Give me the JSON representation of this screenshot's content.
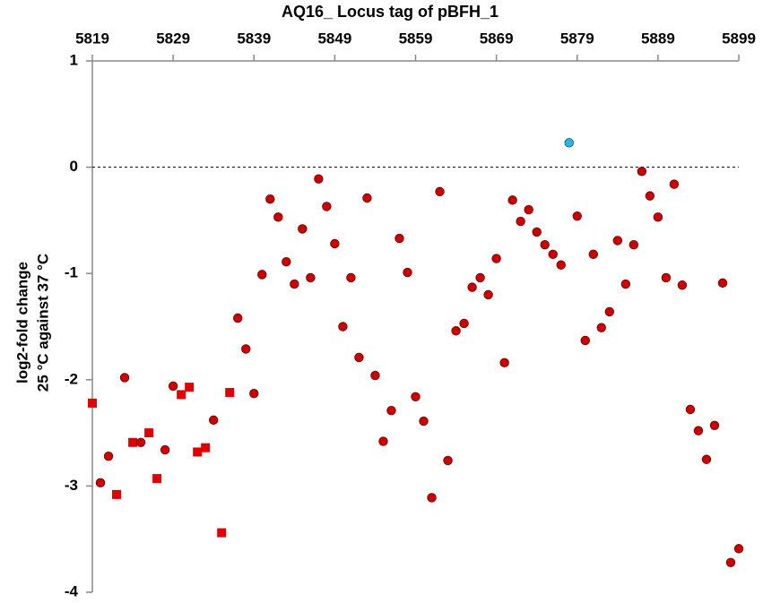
{
  "chart_data": {
    "type": "scatter",
    "title": "AQ16_ Locus tag of pBFH_1",
    "y_label": [
      "log2-fold change",
      "25 °C against 37 °C"
    ],
    "xlim": [
      5819,
      5899
    ],
    "xticks": [
      5819,
      5829,
      5839,
      5849,
      5859,
      5869,
      5879,
      5889,
      5899
    ],
    "ylim": [
      -4,
      1
    ],
    "yticks": [
      -4,
      -3,
      -2,
      -1,
      0,
      1
    ],
    "reference_line": 0,
    "series": [
      {
        "color": "#e00000",
        "marker": "square",
        "x": [
          5819,
          5822,
          5824,
          5826,
          5827,
          5830,
          5831,
          5832,
          5833,
          5835,
          5836
        ],
        "values": [
          -2.22,
          -3.08,
          -2.59,
          -2.5,
          -2.93,
          -2.14,
          -2.07,
          -2.68,
          -2.64,
          -3.44,
          -2.12
        ]
      },
      {
        "color": "#cc0000",
        "marker": "circle",
        "x": [
          5820,
          5821,
          5823,
          5825,
          5828,
          5829,
          5834,
          5837,
          5838,
          5839,
          5840,
          5841,
          5842,
          5843,
          5844,
          5845,
          5846,
          5847,
          5848,
          5849,
          5850,
          5851,
          5852,
          5853,
          5854,
          5855,
          5856,
          5857,
          5858,
          5859,
          5860,
          5861,
          5862,
          5863,
          5864,
          5865,
          5866,
          5867,
          5868,
          5869,
          5870,
          5871,
          5872,
          5873,
          5874,
          5875,
          5876,
          5877,
          5879,
          5880,
          5881,
          5882,
          5883,
          5884,
          5885,
          5886,
          5887,
          5888,
          5889,
          5890,
          5891,
          5892,
          5893,
          5894,
          5895,
          5896,
          5897,
          5898,
          5899
        ],
        "values": [
          -2.97,
          -2.72,
          -1.98,
          -2.59,
          -2.66,
          -2.06,
          -2.38,
          -1.42,
          -1.71,
          -2.13,
          -1.01,
          -0.3,
          -0.47,
          -0.89,
          -1.1,
          -0.58,
          -1.04,
          -0.11,
          -0.37,
          -0.72,
          -1.5,
          -1.04,
          -1.79,
          -0.29,
          -1.96,
          -2.58,
          -2.29,
          -0.67,
          -0.99,
          -2.16,
          -2.39,
          -3.11,
          -0.23,
          -2.76,
          -1.54,
          -1.47,
          -1.13,
          -1.04,
          -1.2,
          -0.86,
          -1.84,
          -0.31,
          -0.51,
          -0.4,
          -0.61,
          -0.73,
          -0.82,
          -0.92,
          -0.46,
          -1.63,
          -0.82,
          -1.51,
          -1.36,
          -0.69,
          -1.1,
          -0.73,
          -0.04,
          -0.27,
          -0.47,
          -1.04,
          -0.16,
          -1.11,
          -2.28,
          -2.48,
          -2.75,
          -2.43,
          -1.09,
          -3.72,
          -3.59
        ]
      },
      {
        "color": "#29b6e8",
        "marker": "circle",
        "x": [
          5878
        ],
        "values": [
          0.23
        ]
      }
    ]
  }
}
